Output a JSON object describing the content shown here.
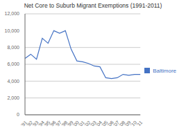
{
  "chart_data": {
    "type": "line",
    "title": "Net Core to Suburb Migrant Exemptions (1991-2011)",
    "categories": [
      "'91",
      "'92",
      "'93",
      "'94",
      "'95",
      "'96",
      "'97",
      "'98",
      "'99",
      "'00",
      "'01",
      "'02",
      "'03",
      "'04",
      "'05",
      "'06",
      "'07",
      "'08",
      "'09",
      "'10",
      "'11"
    ],
    "series": [
      {
        "name": "Baltimore",
        "color": "#4472C4",
        "values": [
          6700,
          7200,
          6600,
          9100,
          8500,
          10000,
          9700,
          10000,
          7800,
          6400,
          6300,
          6100,
          5800,
          5700,
          4400,
          4300,
          4400,
          4800,
          4700,
          4800,
          4800
        ]
      }
    ],
    "ylim": [
      0,
      12000
    ],
    "yticks": [
      0,
      {
        "value": 2000,
        "label": "2,000"
      },
      {
        "value": 4000,
        "label": "4,000"
      },
      {
        "value": 6000,
        "label": "6,000"
      },
      {
        "value": 8000,
        "label": "8,000"
      },
      {
        "value": 10000,
        "label": "10,000"
      },
      {
        "value": 12000,
        "label": "12,000"
      }
    ],
    "grid": true,
    "legend": "right"
  }
}
